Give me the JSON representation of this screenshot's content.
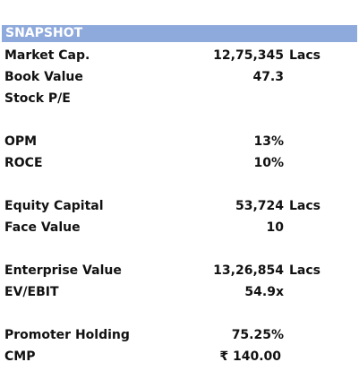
{
  "header": {
    "title": "SNAPSHOT"
  },
  "rows": [
    {
      "label": "Market Cap.",
      "value": "12,75,345",
      "unit": "Lacs"
    },
    {
      "label": "Book Value",
      "value": "47.3",
      "unit": ""
    },
    {
      "label": "Stock P/E",
      "value": "",
      "unit": ""
    },
    {
      "label": "OPM",
      "value": "13%",
      "unit": ""
    },
    {
      "label": "ROCE",
      "value": "10%",
      "unit": ""
    },
    {
      "label": "Equity Capital",
      "value": "53,724",
      "unit": "Lacs"
    },
    {
      "label": "Face Value",
      "value": "10",
      "unit": ""
    },
    {
      "label": "Enterprise Value",
      "value": "13,26,854",
      "unit": "Lacs"
    },
    {
      "label": "EV/EBIT",
      "value": "54.9x",
      "unit": ""
    },
    {
      "label": "Promoter Holding",
      "value": "75.25%",
      "unit": ""
    },
    {
      "label": "CMP",
      "value": "₹ 140.00",
      "unit": ""
    }
  ],
  "colors": {
    "header_bg": "#8ea9db",
    "header_text": "#ffffff"
  }
}
